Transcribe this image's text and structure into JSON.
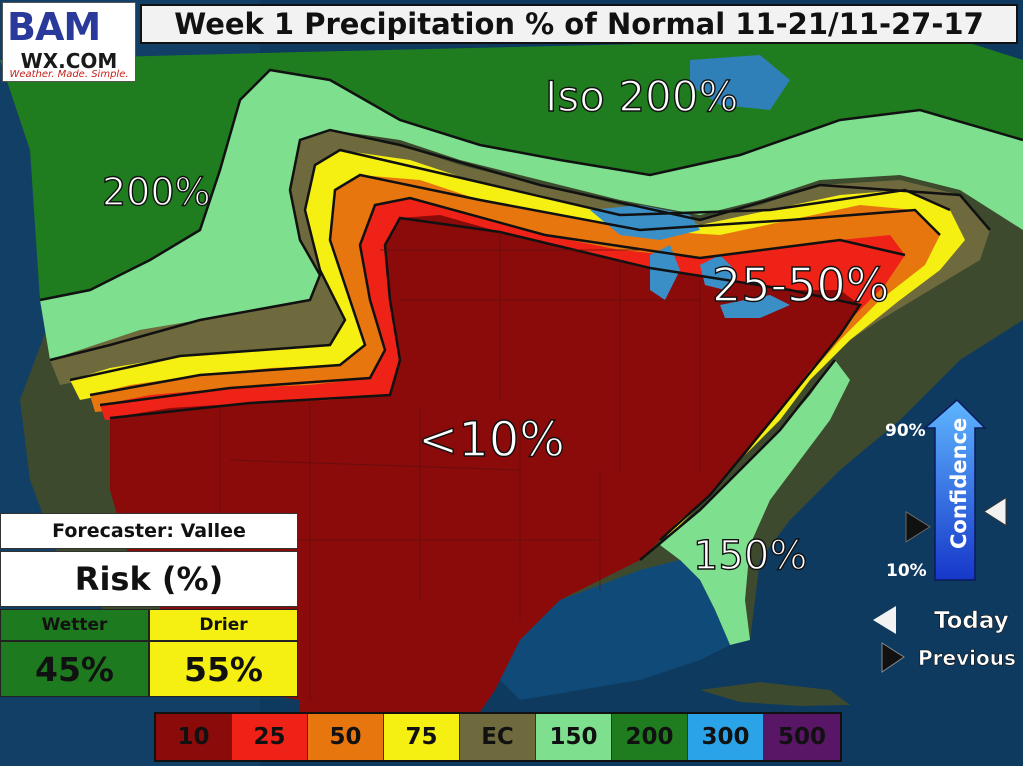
{
  "header": {
    "title": "Week 1 Precipitation % of Normal 11-21/11-27-17"
  },
  "logo": {
    "brand": "BAM",
    "site": "WX.COM",
    "tagline": "Weather. Made. Simple."
  },
  "map_labels": {
    "iso_200": "Iso 200%",
    "northwest_200": "200%",
    "northeast": "25-50%",
    "central": "<10%",
    "southeast": "150%"
  },
  "risk": {
    "forecaster": "Forecaster: Vallee",
    "title": "Risk (%)",
    "wetter_label": "Wetter",
    "drier_label": "Drier",
    "wetter_value": "45%",
    "drier_value": "55%",
    "wetter_color": "#1e7a1e",
    "drier_color": "#f5f012"
  },
  "confidence": {
    "label": "Confidence",
    "top": "90%",
    "bottom": "10%",
    "today_label": "Today",
    "previous_label": "Previous",
    "today_level": 0.45,
    "previous_level": 0.35
  },
  "legend": [
    {
      "label": "10",
      "color": "#8b0a0a"
    },
    {
      "label": "25",
      "color": "#ee2216"
    },
    {
      "label": "50",
      "color": "#e7760f"
    },
    {
      "label": "75",
      "color": "#f5ef12"
    },
    {
      "label": "EC",
      "color": "#6e6a3e"
    },
    {
      "label": "150",
      "color": "#7ee08e"
    },
    {
      "label": "200",
      "color": "#1f7d1f"
    },
    {
      "label": "300",
      "color": "#2aa3e8"
    },
    {
      "label": "500",
      "color": "#5a1666"
    }
  ]
}
